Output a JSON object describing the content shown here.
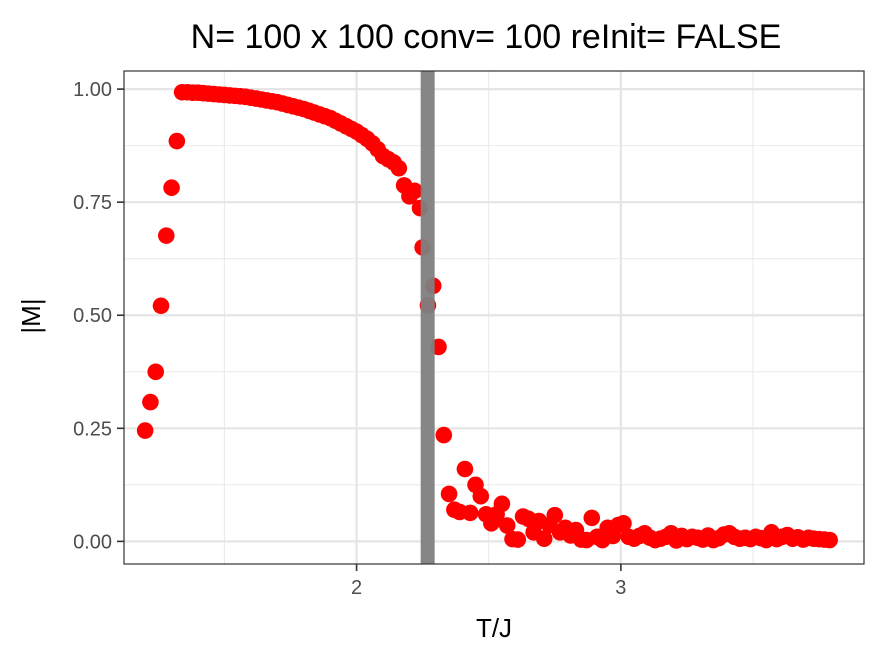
{
  "chart_data": {
    "type": "scatter",
    "title": "N= 100 x 100  conv= 100  reInit= FALSE",
    "xlabel": "T/J",
    "ylabel": "|M|",
    "xlim": [
      1.12,
      3.92
    ],
    "ylim": [
      -0.05,
      1.04
    ],
    "x_ticks": [
      2,
      3
    ],
    "x_tick_labels": [
      "2",
      "3"
    ],
    "y_ticks": [
      0.0,
      0.25,
      0.5,
      0.75,
      1.0
    ],
    "y_tick_labels": [
      "0.00",
      "0.25",
      "0.50",
      "0.75",
      "1.00"
    ],
    "grid": true,
    "legend": "none",
    "point_color": "#ff0000",
    "vline": {
      "x": 2.269,
      "color": "#808080"
    },
    "series": [
      {
        "x": [
          1.2,
          1.22,
          1.24,
          1.26,
          1.28,
          1.3,
          1.32,
          1.34,
          1.36,
          1.38,
          1.4,
          1.42,
          1.44,
          1.46,
          1.48,
          1.5,
          1.52,
          1.54,
          1.56,
          1.58,
          1.6,
          1.62,
          1.64,
          1.66,
          1.68,
          1.7,
          1.72,
          1.74,
          1.76,
          1.78,
          1.8,
          1.82,
          1.84,
          1.86,
          1.88,
          1.9,
          1.92,
          1.94,
          1.96,
          1.98,
          2.0,
          2.02,
          2.04,
          2.06,
          2.08,
          2.1,
          2.12,
          2.14,
          2.16,
          2.18,
          2.2,
          2.22,
          2.24,
          2.25,
          2.27,
          2.29,
          2.31,
          2.33,
          2.35,
          2.37,
          2.39,
          2.41,
          2.43,
          2.45,
          2.47,
          2.49,
          2.51,
          2.53,
          2.55,
          2.57,
          2.59,
          2.61,
          2.63,
          2.65,
          2.67,
          2.69,
          2.71,
          2.73,
          2.75,
          2.77,
          2.79,
          2.81,
          2.83,
          2.85,
          2.87,
          2.89,
          2.91,
          2.93,
          2.95,
          2.97,
          2.99,
          3.01,
          3.03,
          3.05,
          3.07,
          3.09,
          3.11,
          3.13,
          3.15,
          3.17,
          3.19,
          3.21,
          3.23,
          3.25,
          3.27,
          3.29,
          3.31,
          3.33,
          3.35,
          3.37,
          3.39,
          3.41,
          3.43,
          3.45,
          3.47,
          3.49,
          3.51,
          3.53,
          3.55,
          3.57,
          3.59,
          3.61,
          3.63,
          3.65,
          3.67,
          3.69,
          3.71,
          3.73,
          3.75,
          3.77,
          3.79
        ],
        "y": [
          0.245,
          0.308,
          0.375,
          0.521,
          0.676,
          0.782,
          0.885,
          0.993,
          0.993,
          0.992,
          0.992,
          0.991,
          0.99,
          0.989,
          0.988,
          0.987,
          0.986,
          0.985,
          0.984,
          0.983,
          0.981,
          0.979,
          0.977,
          0.975,
          0.973,
          0.971,
          0.968,
          0.965,
          0.962,
          0.959,
          0.956,
          0.952,
          0.948,
          0.944,
          0.94,
          0.936,
          0.93,
          0.924,
          0.918,
          0.912,
          0.906,
          0.898,
          0.89,
          0.88,
          0.867,
          0.852,
          0.845,
          0.838,
          0.825,
          0.787,
          0.763,
          0.775,
          0.737,
          0.65,
          0.522,
          0.565,
          0.43,
          0.235,
          0.105,
          0.07,
          0.065,
          0.16,
          0.063,
          0.125,
          0.1,
          0.06,
          0.04,
          0.06,
          0.083,
          0.035,
          0.005,
          0.004,
          0.055,
          0.05,
          0.02,
          0.045,
          0.006,
          0.036,
          0.058,
          0.02,
          0.03,
          0.013,
          0.025,
          0.004,
          0.003,
          0.052,
          0.01,
          0.003,
          0.03,
          0.012,
          0.036,
          0.04,
          0.01,
          0.006,
          0.012,
          0.018,
          0.008,
          0.003,
          0.006,
          0.01,
          0.018,
          0.002,
          0.012,
          0.005,
          0.01,
          0.008,
          0.004,
          0.013,
          0.003,
          0.007,
          0.015,
          0.018,
          0.01,
          0.006,
          0.008,
          0.005,
          0.01,
          0.007,
          0.003,
          0.02,
          0.005,
          0.01,
          0.014,
          0.006,
          0.009,
          0.004,
          0.008,
          0.006,
          0.005,
          0.004,
          0.003
        ]
      }
    ]
  }
}
